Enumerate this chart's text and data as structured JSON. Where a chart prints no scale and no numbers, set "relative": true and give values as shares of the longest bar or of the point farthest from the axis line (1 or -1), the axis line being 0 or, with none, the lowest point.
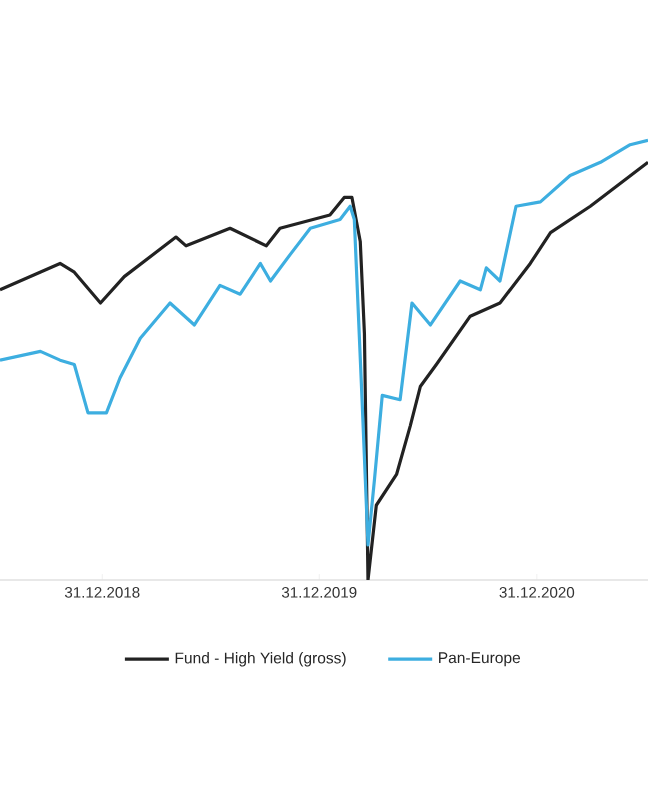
{
  "chart_data": {
    "type": "line",
    "relative": true,
    "legend": "bottom",
    "grid": false,
    "marker": "none",
    "line_style": "solid",
    "xlim": [
      "2018-07-12",
      "2021-07-06"
    ],
    "xticks": [
      {
        "value": "2018-12-31",
        "label": "31.12.2018"
      },
      {
        "value": "2019-12-31",
        "label": "31.12.2019"
      },
      {
        "value": "2020-12-31",
        "label": "31.12.2020"
      }
    ],
    "series": [
      {
        "name": "Fund - High Yield (gross)",
        "color": "#222222",
        "x": [
          "2018-07-12",
          "2018-10-21",
          "2018-11-14",
          "2018-12-28",
          "2019-02-06",
          "2019-05-04",
          "2019-05-21",
          "2019-08-03",
          "2019-10-03",
          "2019-10-26",
          "2020-01-18",
          "2020-02-11",
          "2020-02-24",
          "2020-03-09",
          "2020-03-16",
          "2020-03-22",
          "2020-04-05",
          "2020-05-09",
          "2020-06-01",
          "2020-06-18",
          "2020-07-15",
          "2020-09-10",
          "2020-10-30",
          "2020-12-20",
          "2021-01-23",
          "2021-03-31",
          "2021-07-06"
        ],
        "values": [
          0.66,
          0.72,
          0.7,
          0.63,
          0.69,
          0.78,
          0.76,
          0.8,
          0.76,
          0.8,
          0.83,
          0.87,
          0.87,
          0.77,
          0.56,
          0.0,
          0.17,
          0.24,
          0.35,
          0.44,
          0.49,
          0.6,
          0.63,
          0.72,
          0.79,
          0.85,
          0.95
        ]
      },
      {
        "name": "Pan-Europe",
        "color": "#3daee0",
        "x": [
          "2018-07-12",
          "2018-09-18",
          "2018-10-21",
          "2018-11-14",
          "2018-12-07",
          "2019-01-07",
          "2019-01-30",
          "2019-03-05",
          "2019-04-24",
          "2019-06-04",
          "2019-07-17",
          "2019-08-20",
          "2019-09-23",
          "2019-10-10",
          "2019-11-12",
          "2019-12-16",
          "2020-02-04",
          "2020-02-21",
          "2020-02-28",
          "2020-03-12",
          "2020-03-22",
          "2020-04-02",
          "2020-04-15",
          "2020-05-15",
          "2020-06-04",
          "2020-07-05",
          "2020-08-24",
          "2020-09-27",
          "2020-10-07",
          "2020-10-30",
          "2020-11-26",
          "2021-01-06",
          "2021-02-25",
          "2021-04-17",
          "2021-06-06",
          "2021-07-06"
        ],
        "values": [
          0.5,
          0.52,
          0.5,
          0.49,
          0.38,
          0.38,
          0.46,
          0.55,
          0.63,
          0.58,
          0.67,
          0.65,
          0.72,
          0.68,
          0.74,
          0.8,
          0.82,
          0.85,
          0.82,
          0.41,
          0.08,
          0.23,
          0.42,
          0.41,
          0.63,
          0.58,
          0.68,
          0.66,
          0.71,
          0.68,
          0.85,
          0.86,
          0.92,
          0.95,
          0.99,
          1.0
        ]
      }
    ]
  }
}
